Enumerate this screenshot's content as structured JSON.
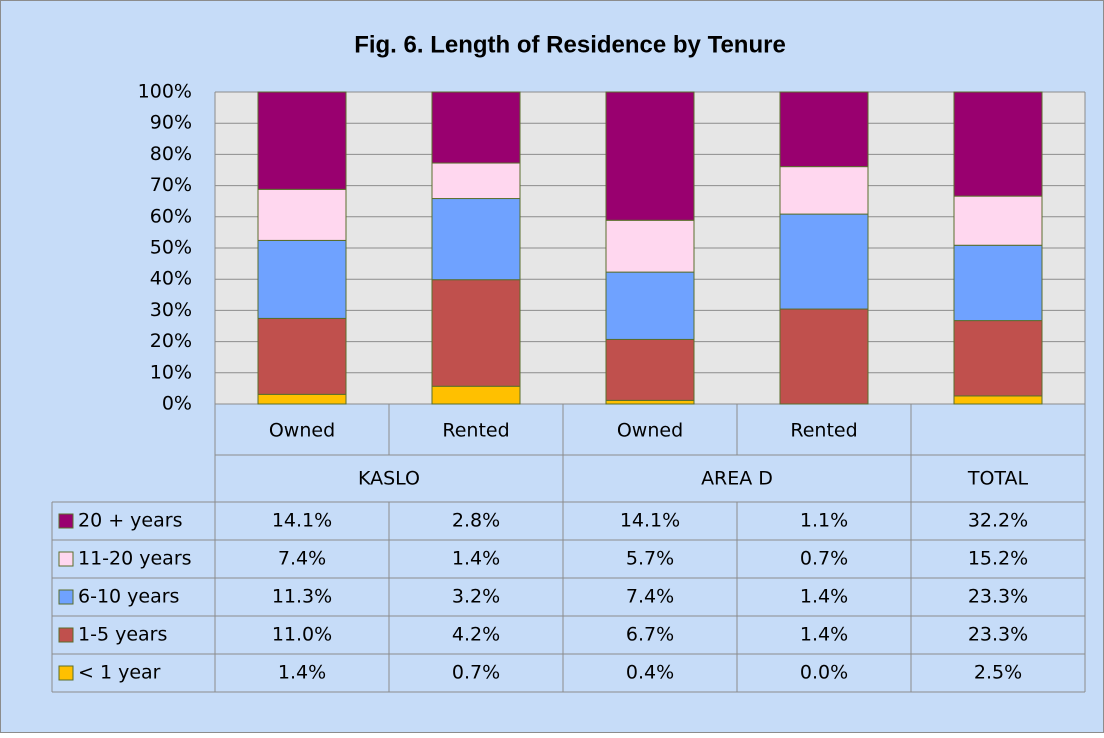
{
  "chart_data": {
    "type": "bar",
    "stacking": "percent",
    "title": "Fig. 6.   Length of Residence by Tenure",
    "categories": [
      "Owned",
      "Rented",
      "Owned",
      "Rented",
      null
    ],
    "groups": [
      "KASLO",
      "AREA  D",
      "TOTAL"
    ],
    "ylim": [
      0,
      100
    ],
    "yticks": [
      {
        "value": 0,
        "label": "0%"
      },
      {
        "value": 10,
        "label": "10%"
      },
      {
        "value": 20,
        "label": "20%"
      },
      {
        "value": 30,
        "label": "30%"
      },
      {
        "value": 40,
        "label": "40%"
      },
      {
        "value": 50,
        "label": "50%"
      },
      {
        "value": 60,
        "label": "60%"
      },
      {
        "value": 70,
        "label": "70%"
      },
      {
        "value": 80,
        "label": "80%"
      },
      {
        "value": 90,
        "label": "90%"
      },
      {
        "value": 100,
        "label": "100%"
      }
    ],
    "grid": true,
    "series": [
      {
        "name": "20 + years",
        "color": "#99006f",
        "values": [
          14.1,
          2.8,
          14.1,
          1.1,
          32.2
        ],
        "value_labels": [
          "14.1%",
          "2.8%",
          "14.1%",
          "1.1%",
          "32.2%"
        ]
      },
      {
        "name": "11-20 years",
        "color": "#ffd7ef",
        "values": [
          7.4,
          1.4,
          5.7,
          0.7,
          15.2
        ],
        "value_labels": [
          "7.4%",
          "1.4%",
          "5.7%",
          "0.7%",
          "15.2%"
        ]
      },
      {
        "name": "6-10 years",
        "color": "#6fa2ff",
        "values": [
          11.3,
          3.2,
          7.4,
          1.4,
          23.3
        ],
        "value_labels": [
          "11.3%",
          "3.2%",
          "7.4%",
          "1.4%",
          "23.3%"
        ]
      },
      {
        "name": "1-5 years",
        "color": "#c0504d",
        "values": [
          11.0,
          4.2,
          6.7,
          1.4,
          23.3
        ],
        "value_labels": [
          "11.0%",
          "4.2%",
          "6.7%",
          "1.4%",
          "23.3%"
        ]
      },
      {
        "name": "< 1 year",
        "color": "#ffc000",
        "values": [
          1.4,
          0.7,
          0.4,
          0.0,
          2.5
        ],
        "value_labels": [
          "1.4%",
          "0.7%",
          "0.4%",
          "0.0%",
          "2.5%"
        ]
      }
    ]
  }
}
